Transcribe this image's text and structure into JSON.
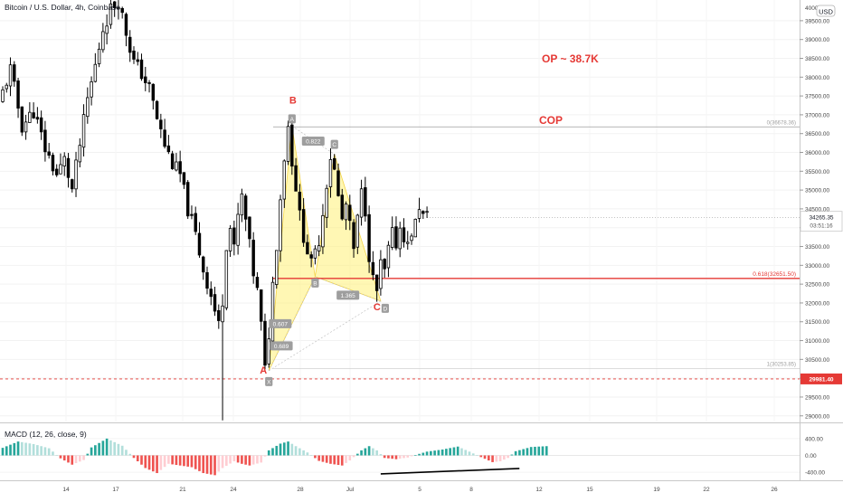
{
  "chart_data": {
    "type": "candlestick",
    "title": "Bitcoin / U.S. Dollar, 4h, Coinbase",
    "currency": "USD",
    "x_ticks": [
      "14",
      "17",
      "21",
      "24",
      "28",
      "Jul",
      "5",
      "8",
      "12",
      "15",
      "19",
      "22",
      "26"
    ],
    "y_ticks": [
      39500,
      39000,
      38500,
      38000,
      37500,
      37000,
      36500,
      36000,
      35500,
      35000,
      34500,
      34000,
      33500,
      33000,
      32500,
      32000,
      31500,
      31000,
      30500,
      30000,
      29500,
      29000
    ],
    "ylim": [
      28850,
      40050
    ],
    "top_tick_label": "40000.00",
    "last_price": {
      "value": 34265.35,
      "label": "34265.35",
      "countdown": "03:51:16"
    },
    "level_label": {
      "value": 29981.4,
      "label": "29981.40"
    },
    "price_path": [
      [
        0,
        37300
      ],
      [
        3,
        38200
      ],
      [
        6,
        36700
      ],
      [
        9,
        37100
      ],
      [
        12,
        36100
      ],
      [
        15,
        35400
      ],
      [
        17,
        35800
      ],
      [
        19,
        35000
      ],
      [
        21,
        36200
      ],
      [
        23,
        37400
      ],
      [
        25,
        38300
      ],
      [
        27,
        39300
      ],
      [
        29,
        39800
      ],
      [
        31,
        40050
      ],
      [
        33,
        39200
      ],
      [
        35,
        38400
      ],
      [
        37,
        38100
      ],
      [
        39,
        37700
      ],
      [
        41,
        36900
      ],
      [
        43,
        36200
      ],
      [
        45,
        35700
      ],
      [
        47,
        35400
      ],
      [
        49,
        34500
      ],
      [
        51,
        33800
      ],
      [
        53,
        32900
      ],
      [
        55,
        32200
      ],
      [
        57,
        31400
      ],
      [
        58,
        32100
      ],
      [
        59,
        33600
      ],
      [
        60,
        34000
      ],
      [
        61,
        33400
      ],
      [
        62,
        34300
      ],
      [
        63,
        34800
      ],
      [
        64,
        34200
      ],
      [
        65,
        33500
      ],
      [
        66,
        32800
      ],
      [
        67,
        32300
      ],
      [
        68,
        31400
      ],
      [
        69,
        30200
      ],
      [
        70,
        31200
      ],
      [
        71,
        32500
      ],
      [
        72,
        33600
      ],
      [
        73,
        34800
      ],
      [
        74,
        35900
      ],
      [
        75,
        36700
      ],
      [
        76,
        35800
      ],
      [
        77,
        35100
      ],
      [
        78,
        34300
      ],
      [
        79,
        33800
      ],
      [
        80,
        33400
      ],
      [
        81,
        33000
      ],
      [
        82,
        33300
      ],
      [
        83,
        33700
      ],
      [
        84,
        34400
      ],
      [
        85,
        35200
      ],
      [
        86,
        35900
      ],
      [
        87,
        35500
      ],
      [
        88,
        34800
      ],
      [
        89,
        34200
      ],
      [
        90,
        34600
      ],
      [
        91,
        34000
      ],
      [
        92,
        33400
      ],
      [
        93,
        34200
      ],
      [
        94,
        34900
      ],
      [
        95,
        34500
      ],
      [
        96,
        33300
      ],
      [
        97,
        32600
      ],
      [
        98,
        32300
      ],
      [
        99,
        33000
      ],
      [
        100,
        32800
      ],
      [
        101,
        33400
      ],
      [
        102,
        33800
      ],
      [
        103,
        33600
      ],
      [
        104,
        34000
      ],
      [
        105,
        33800
      ],
      [
        106,
        33500
      ],
      [
        107,
        33900
      ],
      [
        108,
        34100
      ],
      [
        109,
        34600
      ],
      [
        110,
        34300
      ]
    ],
    "macd": {
      "label": "MACD (12, 26, close, 9)",
      "ylim": [
        -570,
        720
      ],
      "y_ticks": [
        400,
        0,
        -400
      ],
      "y_tick_labels": [
        "400.00",
        "0.00",
        "-400.00"
      ],
      "hist_path": [
        [
          0,
          180
        ],
        [
          4,
          330
        ],
        [
          8,
          270
        ],
        [
          12,
          170
        ],
        [
          15,
          -70
        ],
        [
          18,
          -220
        ],
        [
          21,
          -110
        ],
        [
          23,
          190
        ],
        [
          27,
          400
        ],
        [
          31,
          230
        ],
        [
          34,
          -60
        ],
        [
          37,
          -300
        ],
        [
          40,
          -420
        ],
        [
          43,
          -200
        ],
        [
          46,
          -240
        ],
        [
          49,
          -280
        ],
        [
          52,
          -420
        ],
        [
          55,
          -470
        ],
        [
          57,
          -300
        ],
        [
          60,
          -140
        ],
        [
          62,
          -200
        ],
        [
          64,
          -240
        ],
        [
          67,
          -170
        ],
        [
          69,
          120
        ],
        [
          72,
          280
        ],
        [
          74,
          330
        ],
        [
          76,
          220
        ],
        [
          79,
          70
        ],
        [
          82,
          -130
        ],
        [
          85,
          -200
        ],
        [
          88,
          -240
        ],
        [
          90,
          -120
        ],
        [
          93,
          120
        ],
        [
          95,
          220
        ],
        [
          97,
          120
        ],
        [
          99,
          -60
        ],
        [
          102,
          -90
        ],
        [
          105,
          -50
        ],
        [
          107,
          10
        ],
        [
          110,
          90
        ],
        [
          114,
          140
        ],
        [
          118,
          210
        ],
        [
          121,
          90
        ],
        [
          124,
          -40
        ],
        [
          127,
          -160
        ],
        [
          129,
          -140
        ],
        [
          131,
          -60
        ],
        [
          133,
          100
        ],
        [
          137,
          200
        ],
        [
          141,
          220
        ]
      ]
    },
    "pattern": {
      "points": [
        {
          "id": "X",
          "letter": "A",
          "x": 69,
          "y": 30200
        },
        {
          "id": "A",
          "letter": "B",
          "x": 75,
          "y": 36700
        },
        {
          "id": "B",
          "letter": "",
          "x": 81,
          "y": 32700
        },
        {
          "id": "C",
          "letter": "",
          "x": 86,
          "y": 35950
        },
        {
          "id": "D",
          "letter": "C",
          "x": 98,
          "y": 32050
        }
      ],
      "ratios": [
        "0.607",
        "0.822",
        "1.365",
        "0.689"
      ],
      "fib_top_label": "0(36678.36)",
      "fib_top_value": 36678.36,
      "fib_bottom_label": "1(30253.85)",
      "fib_bottom_value": 30253.85,
      "fib_618_label": "0.618(32651.50)",
      "fib_618_value": 32651.5
    },
    "annotations": {
      "op": "OP ~ 38.7K",
      "cop": "COP"
    },
    "colors": {
      "candle_up": "#ffffff",
      "candle_down": "#000000",
      "hist_pos_strong": "#26a69a",
      "hist_pos_weak": "#b2dfdb",
      "hist_neg_strong": "#ef5350",
      "hist_neg_weak": "#ffcdd2",
      "pattern_fill": "#fff176",
      "annotation_red": "#e53935",
      "level_red": "#e53935",
      "fib_gray": "#9e9e9e"
    }
  }
}
